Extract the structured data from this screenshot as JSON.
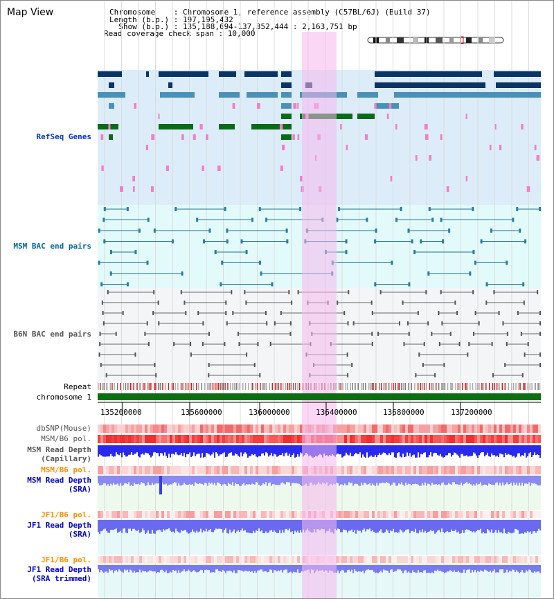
{
  "header": {
    "map_title": "Map View",
    "chromosome_line": "Chromosome    : Chromosome 1, reference assembly (C57BL/6J) (Build 37)",
    "length_line": "Length (b.p.) : 197,195,432",
    "show_line": "  Show (b.p.) : 135,188,694-137,352,444 : 2,163,751 bp",
    "coverage_line": "Read coverage check span : 10,000"
  },
  "tracks": {
    "refseq": "RefSeq Genes",
    "msm_bac": "MSM BAC end pairs",
    "b6n_bac": "B6N BAC end pairs",
    "repeat": "Repeat",
    "chromosome": "chromosome 1",
    "dbsnp": "dbSNP(Mouse)",
    "msm_b6_pol_1": "MSM/B6 pol.",
    "msm_read_depth_cap_1": "MSM Read Depth",
    "msm_read_depth_cap_2": "(Capillary)",
    "msm_b6_pol_2": "MSM/B6 pol.",
    "msm_read_depth_sra_1": "MSM Read Depth",
    "msm_read_depth_sra_2": "(SRA)",
    "jf1_b6_pol_1": "JF1/B6 pol.",
    "jf1_read_depth_sra_1": "JF1 Read Depth",
    "jf1_read_depth_sra_2": "(SRA)",
    "jf1_b6_pol_2": "JF1/B6 pol.",
    "jf1_read_depth_trim_1": "JF1 Read Depth",
    "jf1_read_depth_trim_2": "(SRA trimmed)"
  },
  "axis_ticks": [
    "135200000",
    "135600000",
    "136000000",
    "136400000",
    "136800000",
    "137200000"
  ],
  "colors": {
    "refseq_bg": "#dcedf9",
    "msm_bg": "#e3fafa",
    "b6n_bg": "#f3f5f7",
    "highlight": "#f9d7f3",
    "gene_navy": "#0a3366",
    "gene_blue": "#4a90b8",
    "gene_green": "#0a6a1a",
    "gene_pink": "#f27fc4",
    "chromosome_green": "#0b6e12",
    "depth_blue": "#2a2aee",
    "depth_light": "#7f7ff0",
    "pol_red": "#f06060",
    "orange": "#ff8c00"
  }
}
